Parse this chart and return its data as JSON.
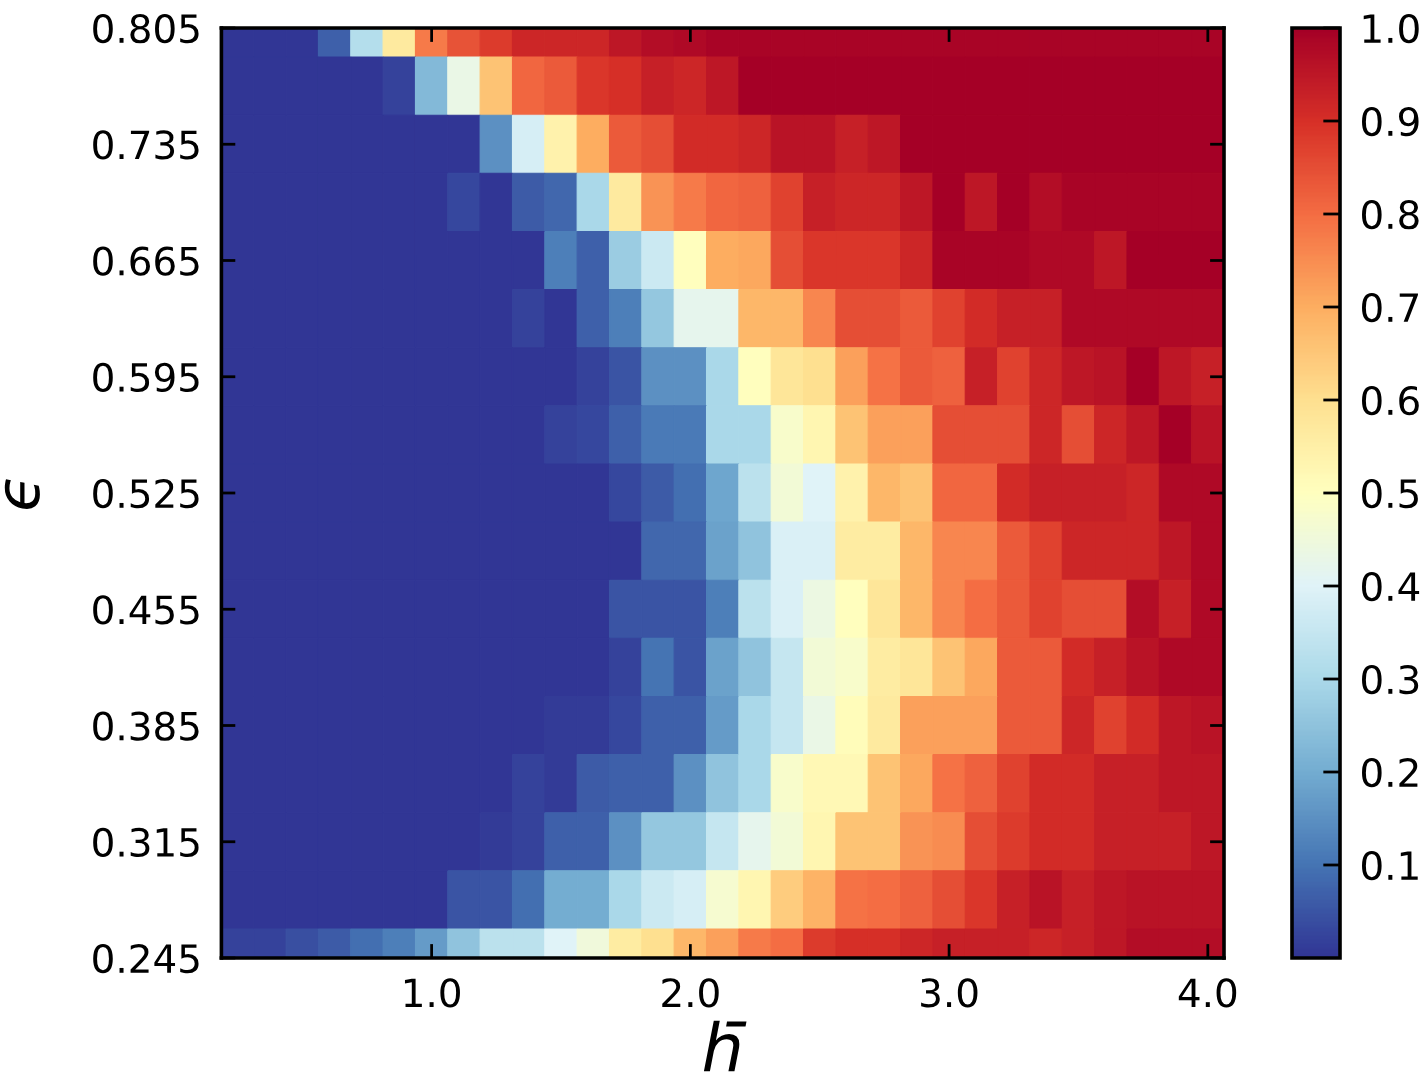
{
  "chart_data": {
    "type": "heatmap",
    "xlabel": "h̄",
    "ylabel": "ϵ",
    "x": [
      0.25,
      0.375,
      0.5,
      0.625,
      0.75,
      0.875,
      1,
      1.125,
      1.25,
      1.375,
      1.5,
      1.625,
      1.75,
      1.875,
      2,
      2.125,
      2.25,
      2.375,
      2.5,
      2.625,
      2.75,
      2.875,
      3,
      3.125,
      3.25,
      3.375,
      3.5,
      3.625,
      3.75,
      3.875,
      4
    ],
    "xlim": [
      0.1875,
      4.0625
    ],
    "ylim": [
      0.245,
      0.805
    ],
    "xticks": [
      {
        "value": 1,
        "label": "1.0"
      },
      {
        "value": 2,
        "label": "2.0"
      },
      {
        "value": 3,
        "label": "3.0"
      },
      {
        "value": 4,
        "label": "4.0"
      }
    ],
    "yticks": [
      0.245,
      0.315,
      0.385,
      0.455,
      0.525,
      0.595,
      0.665,
      0.735,
      0.805
    ],
    "clim": [
      0,
      1
    ],
    "cticks": [
      0.1,
      0.2,
      0.3,
      0.4,
      0.5,
      0.6,
      0.7,
      0.8,
      0.9,
      {
        "value": 1,
        "label": "1.0"
      }
    ],
    "cells": [
      [
        0,
        0,
        0,
        0.07,
        0.32,
        0.57,
        0.78,
        0.84,
        0.88,
        0.92,
        0.92,
        0.92,
        0.95,
        0.97,
        0.98,
        0.99,
        0.99,
        0.99,
        0.99,
        0.99,
        0.99,
        0.99,
        0.99,
        0.99,
        0.99,
        0.99,
        0.99,
        0.99,
        0.99,
        0.99,
        0.99
      ],
      [
        0,
        0,
        0,
        0,
        0,
        0.02,
        0.23,
        0.43,
        0.66,
        0.81,
        0.83,
        0.89,
        0.9,
        0.93,
        0.92,
        0.95,
        1,
        1,
        1,
        1,
        1,
        1,
        1,
        1,
        1,
        1,
        1,
        1,
        1,
        1,
        1
      ],
      [
        0,
        0,
        0,
        0,
        0,
        0,
        0,
        0,
        0.15,
        0.38,
        0.54,
        0.7,
        0.83,
        0.85,
        0.91,
        0.91,
        0.92,
        0.96,
        0.96,
        0.93,
        0.95,
        1,
        1,
        1,
        1,
        1,
        1,
        1,
        1,
        1,
        1
      ],
      [
        0,
        0,
        0,
        0,
        0,
        0,
        0,
        0.03,
        0,
        0.06,
        0.08,
        0.3,
        0.57,
        0.74,
        0.78,
        0.81,
        0.82,
        0.87,
        0.93,
        0.92,
        0.92,
        0.95,
        1,
        0.95,
        1,
        0.97,
        0.99,
        0.99,
        0.99,
        0.99,
        0.99
      ],
      [
        0,
        0,
        0,
        0,
        0,
        0,
        0,
        0,
        0,
        0,
        0.12,
        0.07,
        0.27,
        0.36,
        0.5,
        0.7,
        0.71,
        0.85,
        0.89,
        0.89,
        0.89,
        0.92,
        0.99,
        0.99,
        0.99,
        0.98,
        0.98,
        0.95,
        1,
        1,
        1
      ],
      [
        0,
        0,
        0,
        0,
        0,
        0,
        0,
        0,
        0,
        0.02,
        0,
        0.07,
        0.12,
        0.26,
        0.42,
        0.42,
        0.68,
        0.68,
        0.76,
        0.85,
        0.85,
        0.83,
        0.87,
        0.91,
        0.93,
        0.93,
        0.98,
        0.98,
        0.98,
        0.98,
        0.98
      ],
      [
        0,
        0,
        0,
        0,
        0,
        0,
        0,
        0,
        0,
        0,
        0,
        0.02,
        0.05,
        0.15,
        0.15,
        0.3,
        0.5,
        0.58,
        0.6,
        0.72,
        0.79,
        0.83,
        0.82,
        0.93,
        0.87,
        0.92,
        0.95,
        0.96,
        1,
        0.95,
        0.93
      ],
      [
        0,
        0,
        0,
        0,
        0,
        0,
        0,
        0,
        0,
        0,
        0.02,
        0.03,
        0.07,
        0.11,
        0.11,
        0.3,
        0.3,
        0.48,
        0.53,
        0.66,
        0.72,
        0.72,
        0.85,
        0.85,
        0.85,
        0.92,
        0.85,
        0.92,
        0.95,
        1,
        0.96
      ],
      [
        0,
        0,
        0,
        0,
        0,
        0,
        0,
        0,
        0,
        0,
        0,
        0,
        0.03,
        0.06,
        0.09,
        0.19,
        0.33,
        0.46,
        0.4,
        0.54,
        0.68,
        0.66,
        0.81,
        0.81,
        0.91,
        0.93,
        0.93,
        0.93,
        0.92,
        0.98,
        0.98
      ],
      [
        0,
        0,
        0,
        0,
        0,
        0,
        0,
        0,
        0,
        0,
        0,
        0,
        0,
        0.08,
        0.08,
        0.18,
        0.25,
        0.39,
        0.39,
        0.56,
        0.56,
        0.68,
        0.76,
        0.76,
        0.83,
        0.87,
        0.92,
        0.92,
        0.92,
        0.95,
        0.98
      ],
      [
        0,
        0,
        0,
        0,
        0,
        0,
        0,
        0,
        0,
        0,
        0,
        0,
        0.05,
        0.05,
        0.05,
        0.12,
        0.33,
        0.39,
        0.44,
        0.5,
        0.58,
        0.68,
        0.76,
        0.8,
        0.83,
        0.87,
        0.85,
        0.85,
        0.97,
        0.93,
        0.98
      ],
      [
        0,
        0,
        0,
        0,
        0,
        0,
        0,
        0,
        0,
        0,
        0,
        0,
        0.02,
        0.1,
        0.05,
        0.18,
        0.25,
        0.35,
        0.46,
        0.48,
        0.56,
        0.58,
        0.66,
        0.71,
        0.83,
        0.83,
        0.91,
        0.93,
        0.96,
        0.98,
        0.98
      ],
      [
        0,
        0,
        0,
        0,
        0,
        0,
        0,
        0,
        0,
        0,
        0.01,
        0.01,
        0.03,
        0.07,
        0.07,
        0.17,
        0.3,
        0.35,
        0.43,
        0.51,
        0.57,
        0.72,
        0.72,
        0.72,
        0.83,
        0.83,
        0.92,
        0.87,
        0.91,
        0.95,
        0.96
      ],
      [
        0,
        0,
        0,
        0,
        0,
        0,
        0,
        0,
        0,
        0.02,
        0.01,
        0.06,
        0.07,
        0.07,
        0.15,
        0.25,
        0.3,
        0.48,
        0.52,
        0.52,
        0.66,
        0.71,
        0.79,
        0.82,
        0.87,
        0.91,
        0.91,
        0.93,
        0.93,
        0.95,
        0.95
      ],
      [
        0,
        0,
        0,
        0,
        0,
        0,
        0,
        0,
        0.01,
        0.02,
        0.07,
        0.07,
        0.15,
        0.26,
        0.26,
        0.35,
        0.42,
        0.46,
        0.53,
        0.66,
        0.66,
        0.74,
        0.75,
        0.85,
        0.88,
        0.91,
        0.91,
        0.93,
        0.93,
        0.93,
        0.95
      ],
      [
        0,
        0,
        0,
        0,
        0,
        0,
        0,
        0.05,
        0.05,
        0.09,
        0.2,
        0.2,
        0.3,
        0.36,
        0.38,
        0.47,
        0.53,
        0.64,
        0.69,
        0.79,
        0.8,
        0.82,
        0.85,
        0.89,
        0.93,
        0.96,
        0.93,
        0.95,
        0.96,
        0.96,
        0.96
      ],
      [
        0.02,
        0.02,
        0.04,
        0.06,
        0.09,
        0.12,
        0.17,
        0.25,
        0.33,
        0.33,
        0.4,
        0.45,
        0.56,
        0.6,
        0.68,
        0.72,
        0.78,
        0.8,
        0.88,
        0.9,
        0.9,
        0.92,
        0.93,
        0.93,
        0.93,
        0.92,
        0.93,
        0.95,
        0.97,
        0.97,
        0.97
      ]
    ]
  }
}
